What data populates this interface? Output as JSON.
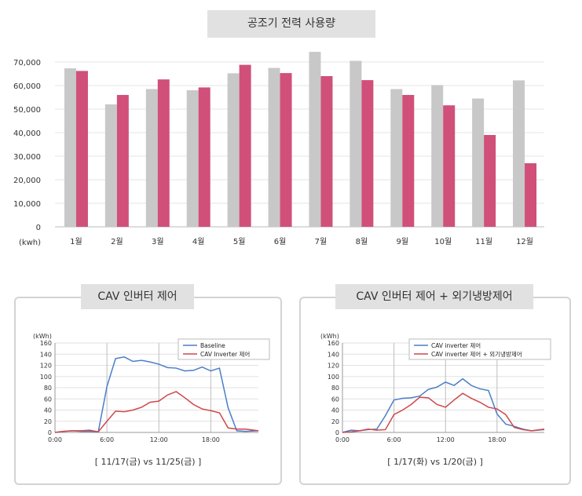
{
  "main_title": "공조기 전력 사용량",
  "left_panel_title": "CAV 인버터 제어",
  "right_panel_title": "CAV 인버터 제어 + 외기냉방제어",
  "left_caption": "[ 11/17(금) vs 11/25(금) ]",
  "right_caption": "[ 1/17(화) vs 1/20(금) ]",
  "colors": {
    "gray": "#c8c8c8",
    "pink": "#d0507a",
    "blue": "#4a7ec8",
    "red": "#d0474a"
  },
  "chart_data": [
    {
      "type": "bar",
      "title": "공조기 전력 사용량",
      "ylabel": "(kwh)",
      "ylim": [
        0,
        70000
      ],
      "yticks": [
        "0",
        "10,000",
        "20,000",
        "30,000",
        "40,000",
        "50,000",
        "60,000",
        "70,000"
      ],
      "categories": [
        "1월",
        "2월",
        "3월",
        "4월",
        "5월",
        "6월",
        "7월",
        "8월",
        "9월",
        "10월",
        "11월",
        "12월"
      ],
      "series": [
        {
          "values": [
            67300,
            52000,
            58500,
            58000,
            65200,
            67500,
            74300,
            70500,
            58500,
            60200,
            54500,
            62200
          ]
        },
        {
          "values": [
            66200,
            56000,
            62600,
            59200,
            68800,
            65300,
            64000,
            62300,
            56000,
            51600,
            39000,
            27000
          ]
        }
      ],
      "grid": true
    },
    {
      "type": "line",
      "ylabel": "(kWh)",
      "ylim": [
        0,
        160
      ],
      "yticks": [
        "0",
        "20",
        "40",
        "60",
        "80",
        "100",
        "120",
        "140",
        "160"
      ],
      "xlim": [
        0,
        23.5
      ],
      "xticks": [
        "0:00",
        "6:00",
        "12:00",
        "18:00"
      ],
      "x": [
        0,
        1,
        2,
        3,
        4,
        5,
        6,
        7,
        8,
        9,
        10,
        11,
        12,
        13,
        14,
        15,
        16,
        17,
        18,
        19,
        20,
        21,
        22,
        23.5
      ],
      "series": [
        {
          "name": "Baseline",
          "values": [
            0,
            2,
            3,
            2,
            2,
            1,
            82,
            132,
            135,
            127,
            129,
            126,
            122,
            116,
            115,
            110,
            111,
            117,
            110,
            115,
            44,
            3,
            2,
            3
          ]
        },
        {
          "name": "CAV Inverter 제어",
          "values": [
            0,
            2,
            3,
            3,
            4,
            1,
            20,
            38,
            37,
            40,
            45,
            54,
            56,
            67,
            73,
            62,
            50,
            42,
            39,
            35,
            8,
            6,
            6,
            3
          ]
        }
      ],
      "legend": "top-right",
      "grid": true
    },
    {
      "type": "line",
      "ylabel": "(kWh)",
      "ylim": [
        0,
        160
      ],
      "yticks": [
        "0",
        "20",
        "40",
        "60",
        "80",
        "100",
        "120",
        "140",
        "160"
      ],
      "xlim": [
        0,
        23.5
      ],
      "xticks": [
        "0:00",
        "6:00",
        "12:00",
        "18:00"
      ],
      "x": [
        0,
        1,
        2,
        3,
        4,
        5,
        6,
        7,
        8,
        9,
        10,
        11,
        12,
        13,
        14,
        15,
        16,
        17,
        18,
        19,
        20,
        21,
        22,
        23.5
      ],
      "series": [
        {
          "name": "CAV inverter 제어",
          "values": [
            0,
            4,
            3,
            5,
            6,
            30,
            58,
            61,
            62,
            65,
            77,
            81,
            90,
            84,
            96,
            84,
            78,
            75,
            33,
            15,
            11,
            6,
            3,
            5
          ]
        },
        {
          "name": "CAV inverter 제어 + 외기냉방제어",
          "values": [
            0,
            1,
            3,
            6,
            4,
            5,
            32,
            40,
            50,
            63,
            62,
            50,
            45,
            58,
            70,
            61,
            54,
            45,
            42,
            32,
            9,
            5,
            3,
            6
          ]
        }
      ],
      "legend": "top-right",
      "grid": true
    }
  ]
}
